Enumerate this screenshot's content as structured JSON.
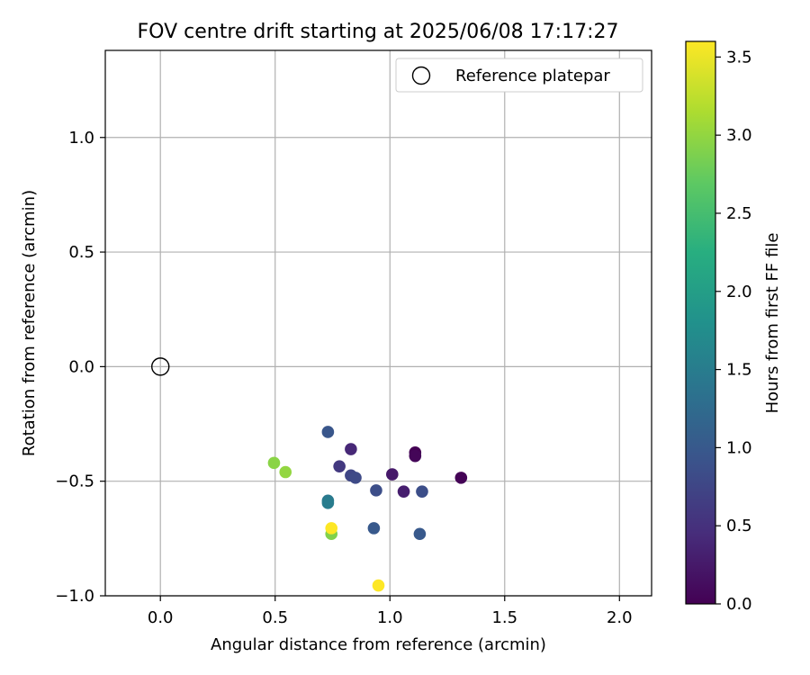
{
  "chart_data": {
    "type": "scatter",
    "title": "FOV centre drift starting at 2025/06/08 17:17:27",
    "xlabel": "Angular distance from reference (arcmin)",
    "ylabel": "Rotation from reference (arcmin)",
    "xlim": [
      -0.24,
      2.14
    ],
    "ylim": [
      -1.0,
      1.38
    ],
    "xticks": [
      0.0,
      0.5,
      1.0,
      1.5,
      2.0
    ],
    "xtick_labels": [
      "0.0",
      "0.5",
      "1.0",
      "1.5",
      "2.0"
    ],
    "yticks": [
      -1.0,
      -0.5,
      0.0,
      0.5,
      1.0
    ],
    "ytick_labels": [
      "−1.0",
      "−0.5",
      "0.0",
      "0.5",
      "1.0"
    ],
    "grid": true,
    "legend": {
      "placement": "top-right",
      "entries": [
        "Reference platepar"
      ]
    },
    "reference_point": {
      "x": 0.0,
      "y": 0.0,
      "label": "Reference platepar"
    },
    "colorbar": {
      "label": "Hours from first FF file",
      "colormap": "viridis",
      "range": [
        0.0,
        3.6
      ],
      "ticks": [
        0.0,
        0.5,
        1.0,
        1.5,
        2.0,
        2.5,
        3.0,
        3.5
      ],
      "tick_labels": [
        "0.0",
        "0.5",
        "1.0",
        "1.5",
        "2.0",
        "2.5",
        "3.0",
        "3.5"
      ]
    },
    "points": [
      {
        "x": 1.11,
        "y": -0.375,
        "c": 0.0
      },
      {
        "x": 1.11,
        "y": -0.39,
        "c": 0.05
      },
      {
        "x": 1.31,
        "y": -0.485,
        "c": 0.02
      },
      {
        "x": 1.01,
        "y": -0.47,
        "c": 0.25
      },
      {
        "x": 1.06,
        "y": -0.545,
        "c": 0.3
      },
      {
        "x": 0.83,
        "y": -0.36,
        "c": 0.4
      },
      {
        "x": 0.78,
        "y": -0.435,
        "c": 0.6
      },
      {
        "x": 0.83,
        "y": -0.475,
        "c": 0.75
      },
      {
        "x": 0.85,
        "y": -0.485,
        "c": 0.8
      },
      {
        "x": 0.94,
        "y": -0.54,
        "c": 0.85
      },
      {
        "x": 1.14,
        "y": -0.545,
        "c": 0.85
      },
      {
        "x": 0.73,
        "y": -0.285,
        "c": 0.95
      },
      {
        "x": 0.93,
        "y": -0.705,
        "c": 1.0
      },
      {
        "x": 1.13,
        "y": -0.73,
        "c": 1.0
      },
      {
        "x": 0.73,
        "y": -0.585,
        "c": 1.45
      },
      {
        "x": 0.73,
        "y": -0.595,
        "c": 1.5
      },
      {
        "x": 0.495,
        "y": -0.42,
        "c": 2.95
      },
      {
        "x": 0.545,
        "y": -0.46,
        "c": 3.0
      },
      {
        "x": 0.745,
        "y": -0.73,
        "c": 2.9
      },
      {
        "x": 0.745,
        "y": -0.705,
        "c": 3.6
      },
      {
        "x": 0.95,
        "y": -0.955,
        "c": 3.6
      }
    ]
  }
}
